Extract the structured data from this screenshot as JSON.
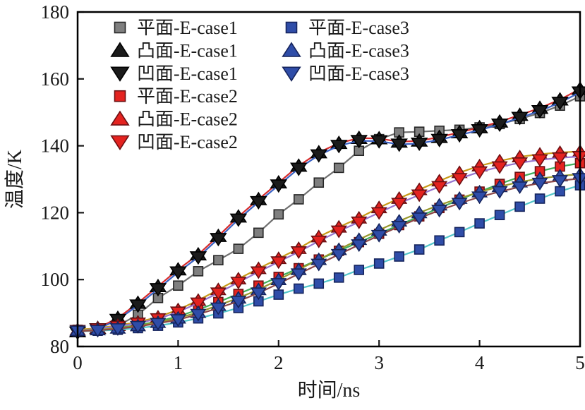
{
  "figure": {
    "background": "#ffffff"
  },
  "chart_data": {
    "type": "line",
    "title": "",
    "xlabel": "时间/ns",
    "ylabel": "温度/K",
    "xlim": [
      0,
      5
    ],
    "ylim": [
      80,
      180
    ],
    "x_ticks": [
      "0",
      "1",
      "2",
      "3",
      "4",
      "5"
    ],
    "x_tick_values": [
      0,
      1,
      2,
      3,
      4,
      5
    ],
    "y_ticks": [
      "80",
      "100",
      "120",
      "140",
      "160",
      "180"
    ],
    "y_tick_values": [
      80,
      100,
      120,
      140,
      160,
      180
    ],
    "grid": false,
    "legend": {
      "position": "top-inside",
      "columns": [
        [
          0,
          1,
          2,
          3,
          4,
          5
        ],
        [
          6,
          7,
          8
        ]
      ]
    },
    "x": [
      0,
      0.2,
      0.4,
      0.6,
      0.8,
      1,
      1.2,
      1.4,
      1.6,
      1.8,
      2,
      2.2,
      2.4,
      2.6,
      2.8,
      3,
      3.2,
      3.4,
      3.6,
      3.8,
      4,
      4.2,
      4.4,
      4.6,
      4.8,
      5
    ],
    "series": [
      {
        "key": "flat-e-case1",
        "name": "平面-E-case1",
        "marker": "square",
        "marker_fill": "#7f7f7f",
        "marker_edge": "#262626",
        "line_color": "#6f6f6f",
        "values": [
          85,
          85.3,
          86.2,
          89.5,
          94.5,
          98.2,
          102.5,
          105.8,
          109.2,
          114,
          119.5,
          124,
          129,
          133.4,
          138.5,
          142,
          144,
          144.2,
          144.5,
          144.8,
          145.5,
          146.5,
          148,
          149.8,
          152,
          154.8
        ]
      },
      {
        "key": "convex-e-case1",
        "name": "凸面-E-case1",
        "marker": "triangle-up",
        "marker_fill": "#1b1b1b",
        "marker_edge": "#000000",
        "line_color": "#d62b2b",
        "values": [
          84.5,
          85.5,
          88.5,
          93,
          98,
          103,
          107.5,
          113,
          118.8,
          124,
          129,
          134,
          138,
          140.8,
          142.3,
          142.2,
          141.2,
          141.5,
          142.6,
          144,
          145.5,
          147.2,
          149.2,
          151.3,
          153.8,
          157
        ]
      },
      {
        "key": "concave-e-case1",
        "name": "凹面-E-case1",
        "marker": "triangle-down",
        "marker_fill": "#1b1b1b",
        "marker_edge": "#000000",
        "line_color": "#3a62c4",
        "values": [
          84.2,
          85.2,
          88,
          92.3,
          97.2,
          102.2,
          106.7,
          112.2,
          118,
          123.2,
          128.2,
          133.2,
          137.2,
          140,
          141.5,
          141.4,
          140.4,
          140.7,
          141.8,
          143.2,
          144.7,
          146.4,
          148.4,
          150.4,
          152.9,
          156
        ]
      },
      {
        "key": "flat-e-case2",
        "name": "平面-E-case2",
        "marker": "square",
        "marker_fill": "#e42320",
        "marker_edge": "#6b0f12",
        "line_color": "#3fae5a",
        "values": [
          84.9,
          85.1,
          85.6,
          86.4,
          87.5,
          89,
          91,
          93.3,
          95.7,
          98.2,
          100.8,
          103.4,
          106,
          108.6,
          111.2,
          113.7,
          116.3,
          118.9,
          121.4,
          123.9,
          126.3,
          128.6,
          130.7,
          132.4,
          133.8,
          134.8
        ]
      },
      {
        "key": "convex-e-case2",
        "name": "凸面-E-case2",
        "marker": "triangle-up",
        "marker_fill": "#e42320",
        "marker_edge": "#6b0f12",
        "line_color": "#c79a18",
        "values": [
          85,
          85.5,
          86.3,
          87.3,
          88.8,
          91,
          93.8,
          97,
          100.2,
          103.3,
          106.3,
          109.3,
          112.8,
          115.7,
          118.4,
          121.5,
          124.3,
          126.9,
          129.5,
          132,
          134,
          135.5,
          136.7,
          137.5,
          138,
          138.3
        ]
      },
      {
        "key": "concave-e-case2",
        "name": "凹面-E-case2",
        "marker": "triangle-down",
        "marker_fill": "#e42320",
        "marker_edge": "#6b0f12",
        "line_color": "#9673cd",
        "values": [
          84.8,
          85.3,
          86,
          87,
          88.3,
          90.3,
          93,
          96,
          99.2,
          102.3,
          105.3,
          108.3,
          111.5,
          114.5,
          117.2,
          120,
          122.8,
          125.3,
          127.8,
          130.2,
          132.2,
          133.7,
          134.9,
          135.8,
          136.4,
          136.8
        ]
      },
      {
        "key": "flat-e-case3",
        "name": "平面-E-case3",
        "marker": "square",
        "marker_fill": "#2f4da8",
        "marker_edge": "#16245c",
        "line_color": "#52c5c9",
        "values": [
          84.5,
          84.7,
          85,
          85.5,
          86.2,
          87.2,
          88.4,
          89.9,
          91.5,
          93.5,
          95.5,
          97.3,
          98.8,
          100.6,
          102.9,
          104.8,
          106.9,
          109,
          111.7,
          114.2,
          116.8,
          119.3,
          121.8,
          124.2,
          126.4,
          128.2
        ]
      },
      {
        "key": "convex-e-case3",
        "name": "凸面-E-case3",
        "marker": "triangle-up",
        "marker_fill": "#2f4da8",
        "marker_edge": "#16245c",
        "line_color": "#97972a",
        "values": [
          84.8,
          85,
          85.5,
          86.2,
          87.2,
          88.5,
          90.2,
          92.3,
          94.5,
          97,
          100,
          103,
          106,
          109,
          112,
          114.8,
          117.5,
          120,
          122.3,
          124.3,
          126.2,
          127.8,
          129.2,
          130.2,
          131,
          131.5
        ]
      },
      {
        "key": "concave-e-case3",
        "name": "凹面-E-case3",
        "marker": "triangle-down",
        "marker_fill": "#2f4da8",
        "marker_edge": "#16245c",
        "line_color": "#8c4646",
        "values": [
          84.6,
          84.8,
          85.3,
          86,
          86.9,
          88,
          89.6,
          91.5,
          93.5,
          96,
          98.8,
          101.7,
          104.6,
          107.5,
          110.4,
          113.2,
          115.9,
          118.4,
          120.7,
          122.8,
          124.7,
          126.3,
          127.7,
          128.8,
          129.6,
          130.2
        ]
      }
    ]
  }
}
